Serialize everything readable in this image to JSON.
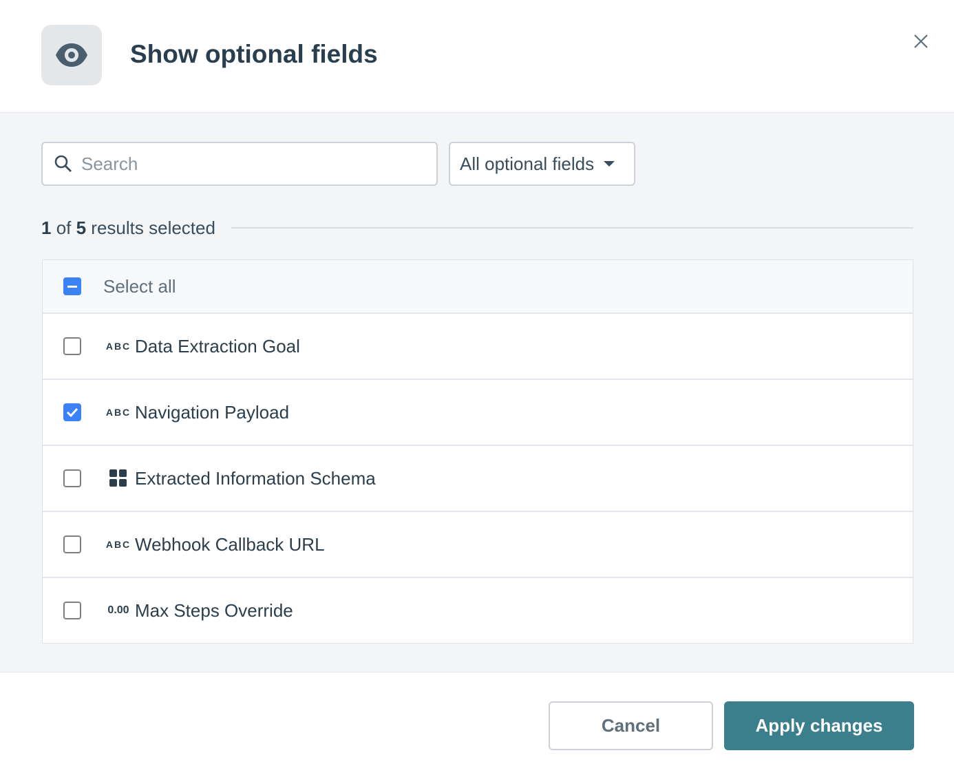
{
  "dialog": {
    "title": "Show optional fields",
    "icon": "eye-icon"
  },
  "filters": {
    "search_placeholder": "Search",
    "search_value": "",
    "dropdown_label": "All optional fields"
  },
  "summary": {
    "selected": "1",
    "of": " of ",
    "total": "5",
    "suffix": " results selected"
  },
  "list": {
    "select_all": {
      "label": "Select all",
      "state": "indeterminate"
    },
    "items": [
      {
        "label": "Data Extraction Goal",
        "type": "ABC",
        "checked": false
      },
      {
        "label": "Navigation Payload",
        "type": "ABC",
        "checked": true
      },
      {
        "label": "Extracted Information Schema",
        "type": "grid-icon",
        "checked": false
      },
      {
        "label": "Webhook Callback URL",
        "type": "ABC",
        "checked": false
      },
      {
        "label": "Max Steps Override",
        "type": "0.00",
        "checked": false
      }
    ]
  },
  "footer": {
    "cancel": "Cancel",
    "apply": "Apply changes"
  },
  "colors": {
    "accent": "#3b82f6",
    "primary_button": "#3b7f8c",
    "title": "#2a3f4e"
  }
}
